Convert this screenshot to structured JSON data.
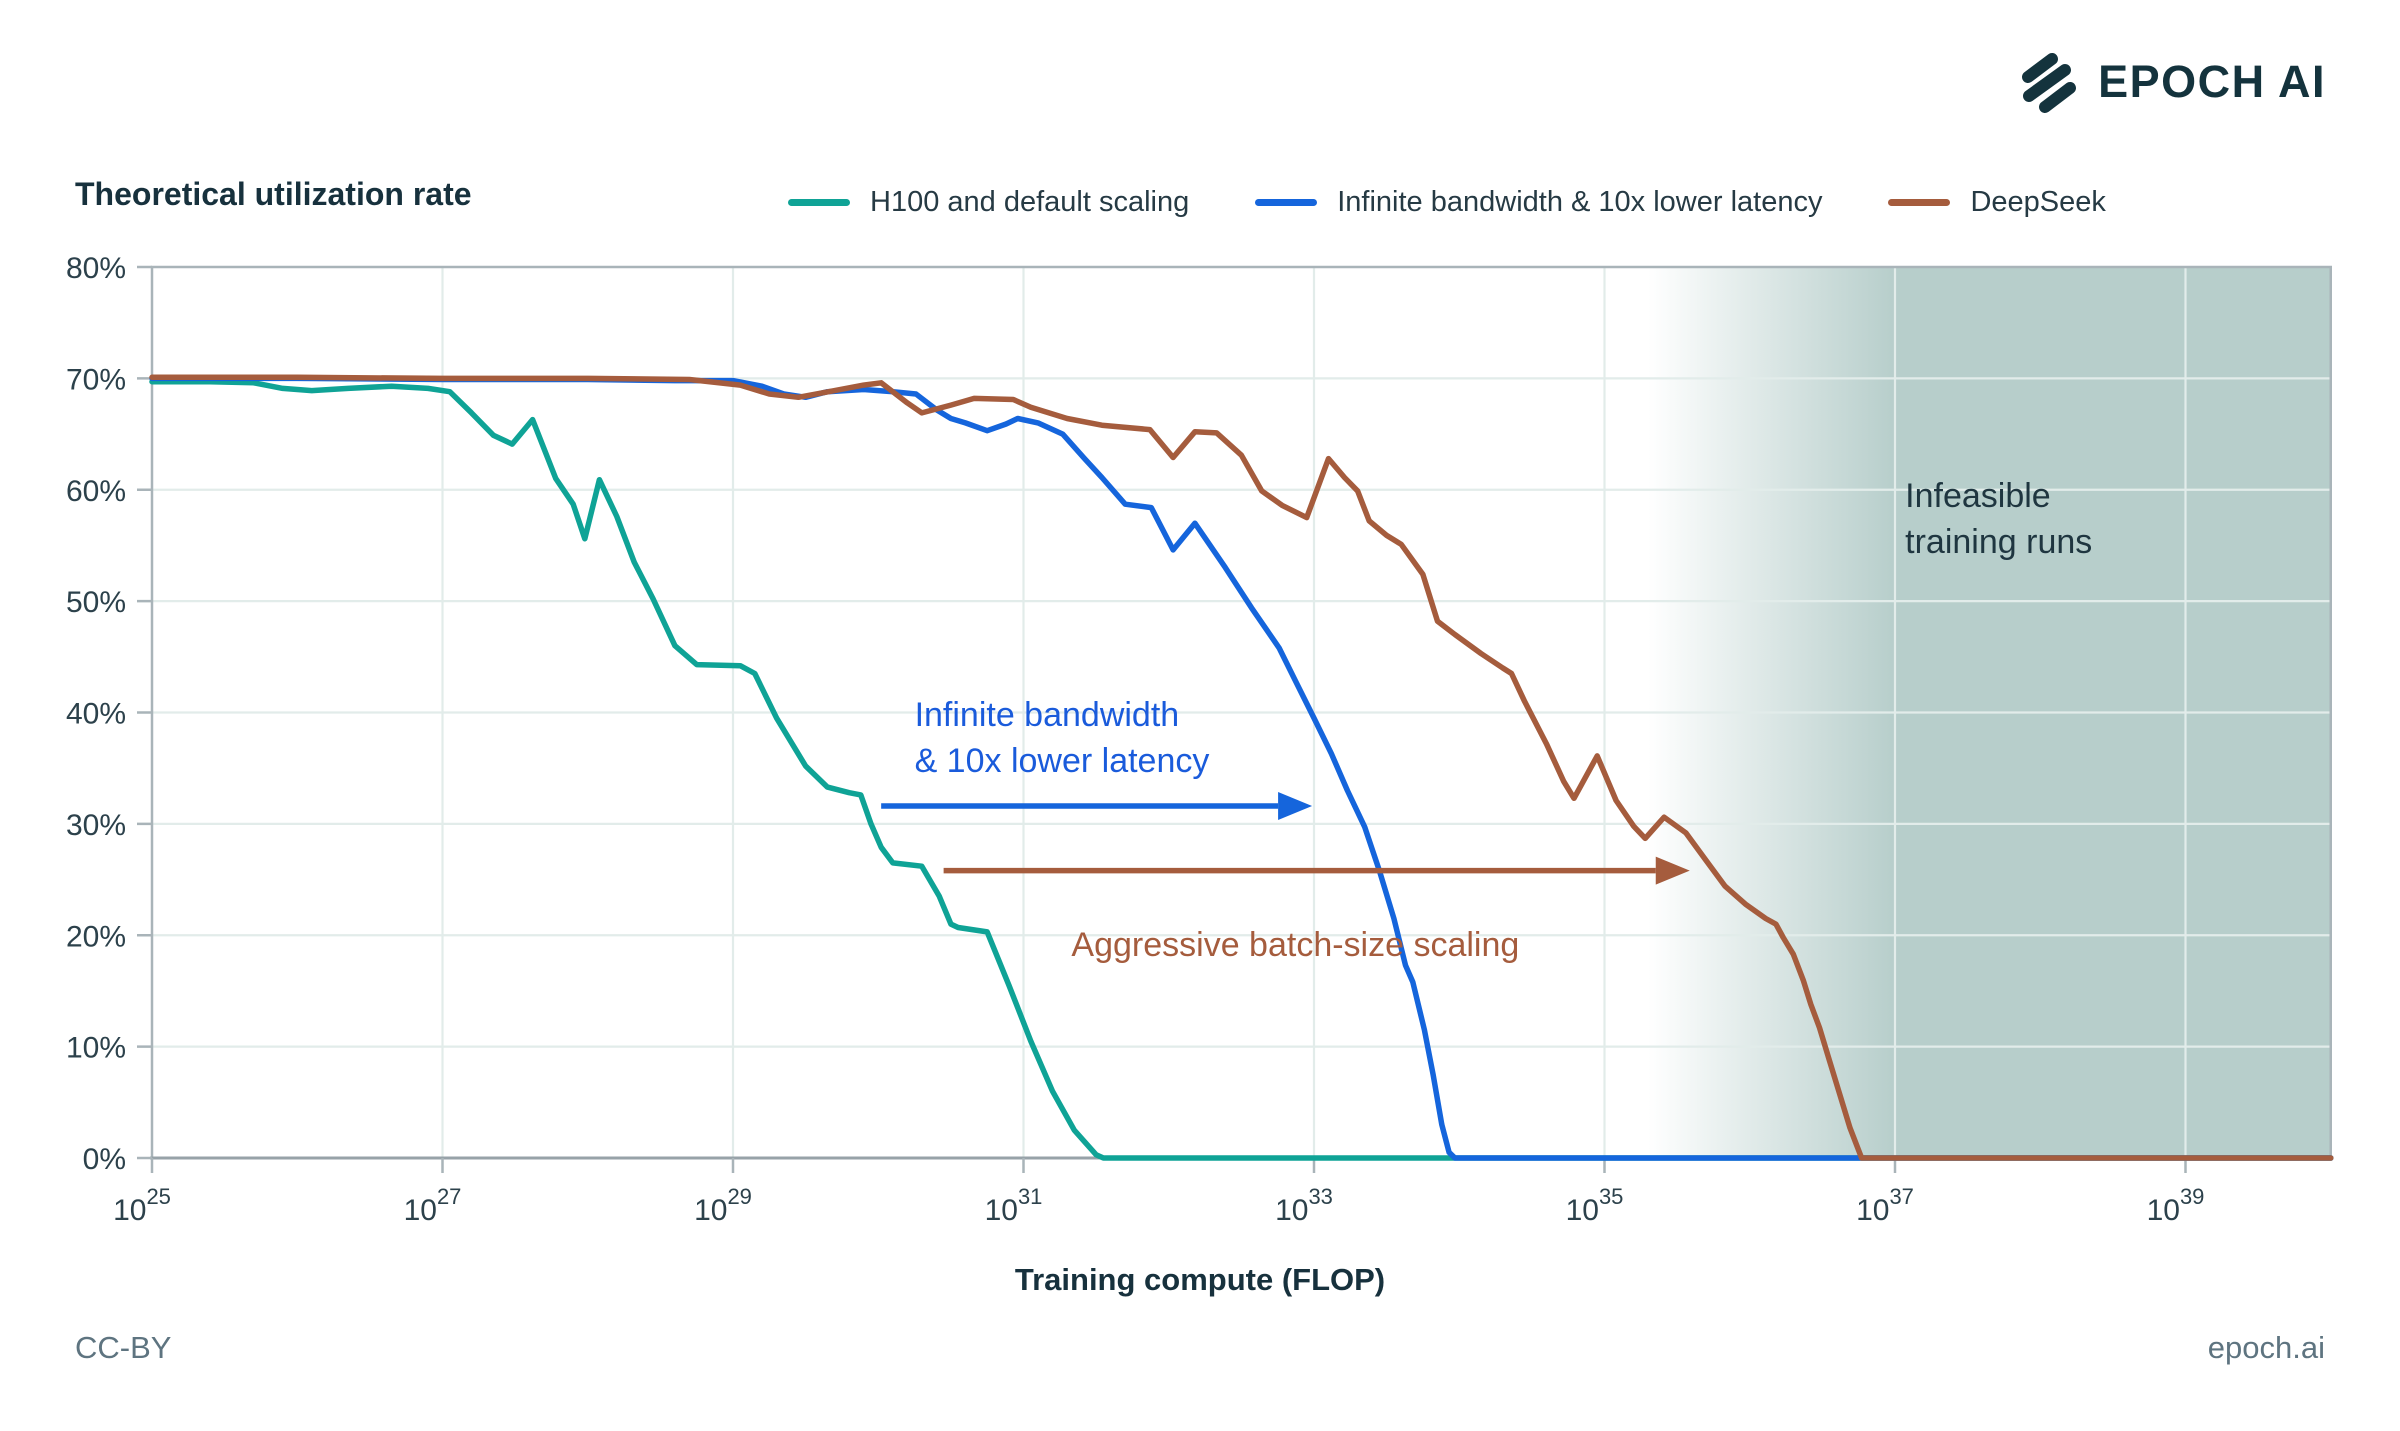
{
  "header": {
    "logo_text": "EPOCH AI",
    "title": "Theoretical utilization rate"
  },
  "legend": {
    "items": [
      {
        "label": "H100 and default scaling",
        "color": "#0FA396"
      },
      {
        "label": "Infinite bandwidth & 10x lower latency",
        "color": "#1565DC"
      },
      {
        "label": "DeepSeek",
        "color": "#A55C3D"
      }
    ]
  },
  "footer": {
    "license": "CC-BY",
    "site": "epoch.ai"
  },
  "axis": {
    "x_title": "Training compute (FLOP)"
  },
  "colors": {
    "grid": "#E2ECEA",
    "frame": "#A9B4B9",
    "axis_line": "#97A2A8",
    "tick": "#A9B4B9",
    "label_dark": "#2C414B",
    "infeasible_fill": "#B7CECB",
    "logo": "#14333D"
  },
  "chart_data": {
    "type": "line",
    "title": "Theoretical utilization rate",
    "xlabel": "Training compute (FLOP)",
    "ylabel": "Theoretical utilization rate (%)",
    "x_scale": "log10",
    "xlim_exponents": [
      25,
      40
    ],
    "x_tick_exponents": [
      25,
      27,
      29,
      31,
      33,
      35,
      37,
      39
    ],
    "x_tick_base": "10",
    "ylim": [
      0,
      80
    ],
    "y_ticks_percent": [
      0,
      10,
      20,
      30,
      40,
      50,
      60,
      70,
      80
    ],
    "grid": true,
    "legend_position": "top",
    "infeasible_region": {
      "label_lines": [
        "Infeasible",
        "training runs"
      ],
      "fade_from_exp": 35.3,
      "solid_from_exp": 37.0,
      "color": "#B7CECB"
    },
    "series": [
      {
        "id": "h100-default-scaling",
        "name": "H100 and default scaling",
        "color": "#0FA396",
        "points_log10x_pct": [
          [
            25.0,
            69.7
          ],
          [
            25.4,
            69.7
          ],
          [
            25.7,
            69.6
          ],
          [
            25.9,
            69.1
          ],
          [
            26.1,
            68.9
          ],
          [
            26.35,
            69.1
          ],
          [
            26.65,
            69.3
          ],
          [
            26.9,
            69.1
          ],
          [
            27.05,
            68.8
          ],
          [
            27.2,
            66.9
          ],
          [
            27.35,
            64.9
          ],
          [
            27.48,
            64.1
          ],
          [
            27.62,
            66.3
          ],
          [
            27.78,
            61.0
          ],
          [
            27.9,
            58.7
          ],
          [
            27.98,
            55.6
          ],
          [
            28.08,
            60.9
          ],
          [
            28.2,
            57.6
          ],
          [
            28.32,
            53.5
          ],
          [
            28.45,
            50.2
          ],
          [
            28.6,
            46.0
          ],
          [
            28.75,
            44.3
          ],
          [
            29.05,
            44.2
          ],
          [
            29.15,
            43.5
          ],
          [
            29.3,
            39.5
          ],
          [
            29.5,
            35.2
          ],
          [
            29.65,
            33.3
          ],
          [
            29.8,
            32.8
          ],
          [
            29.88,
            32.6
          ],
          [
            29.95,
            30.0
          ],
          [
            30.02,
            27.9
          ],
          [
            30.1,
            26.5
          ],
          [
            30.3,
            26.2
          ],
          [
            30.42,
            23.5
          ],
          [
            30.5,
            21.0
          ],
          [
            30.55,
            20.7
          ],
          [
            30.75,
            20.3
          ],
          [
            30.9,
            15.5
          ],
          [
            31.05,
            10.5
          ],
          [
            31.2,
            6.0
          ],
          [
            31.35,
            2.5
          ],
          [
            31.5,
            0.3
          ],
          [
            31.55,
            0.0
          ],
          [
            40.0,
            0.0
          ]
        ]
      },
      {
        "id": "infinite-bandwidth-10x-lower-latency",
        "name": "Infinite bandwidth & 10x lower latency",
        "color": "#1565DC",
        "points_log10x_pct": [
          [
            25.0,
            70.0
          ],
          [
            26.0,
            70.0
          ],
          [
            27.0,
            69.9
          ],
          [
            28.0,
            69.9
          ],
          [
            28.6,
            69.8
          ],
          [
            29.0,
            69.8
          ],
          [
            29.2,
            69.3
          ],
          [
            29.35,
            68.6
          ],
          [
            29.5,
            68.3
          ],
          [
            29.65,
            68.8
          ],
          [
            29.9,
            69.0
          ],
          [
            30.1,
            68.8
          ],
          [
            30.26,
            68.6
          ],
          [
            30.4,
            67.2
          ],
          [
            30.5,
            66.4
          ],
          [
            30.6,
            66.0
          ],
          [
            30.75,
            65.3
          ],
          [
            30.88,
            65.9
          ],
          [
            30.96,
            66.4
          ],
          [
            31.1,
            66.0
          ],
          [
            31.27,
            65.0
          ],
          [
            31.42,
            62.8
          ],
          [
            31.54,
            61.1
          ],
          [
            31.7,
            58.7
          ],
          [
            31.88,
            58.4
          ],
          [
            32.03,
            54.6
          ],
          [
            32.18,
            57.0
          ],
          [
            32.39,
            53.0
          ],
          [
            32.57,
            49.4
          ],
          [
            32.76,
            45.8
          ],
          [
            32.87,
            42.9
          ],
          [
            33.0,
            39.5
          ],
          [
            33.12,
            36.3
          ],
          [
            33.23,
            33.0
          ],
          [
            33.35,
            29.7
          ],
          [
            33.45,
            25.8
          ],
          [
            33.55,
            21.5
          ],
          [
            33.63,
            17.3
          ],
          [
            33.68,
            15.8
          ],
          [
            33.76,
            11.5
          ],
          [
            33.82,
            7.5
          ],
          [
            33.88,
            3.0
          ],
          [
            33.93,
            0.5
          ],
          [
            33.97,
            0.0
          ],
          [
            40.0,
            0.0
          ]
        ]
      },
      {
        "id": "deepseek",
        "name": "DeepSeek",
        "color": "#A55C3D",
        "points_log10x_pct": [
          [
            25.0,
            70.1
          ],
          [
            26.0,
            70.1
          ],
          [
            27.0,
            70.0
          ],
          [
            28.0,
            70.0
          ],
          [
            28.7,
            69.9
          ],
          [
            29.05,
            69.4
          ],
          [
            29.25,
            68.6
          ],
          [
            29.45,
            68.3
          ],
          [
            29.7,
            68.9
          ],
          [
            29.9,
            69.4
          ],
          [
            30.02,
            69.6
          ],
          [
            30.2,
            67.8
          ],
          [
            30.3,
            66.9
          ],
          [
            30.5,
            67.6
          ],
          [
            30.66,
            68.2
          ],
          [
            30.93,
            68.1
          ],
          [
            31.05,
            67.4
          ],
          [
            31.3,
            66.4
          ],
          [
            31.54,
            65.8
          ],
          [
            31.87,
            65.4
          ],
          [
            32.03,
            62.9
          ],
          [
            32.18,
            65.2
          ],
          [
            32.33,
            65.1
          ],
          [
            32.5,
            63.1
          ],
          [
            32.64,
            59.9
          ],
          [
            32.78,
            58.6
          ],
          [
            32.95,
            57.5
          ],
          [
            33.1,
            62.8
          ],
          [
            33.21,
            61.1
          ],
          [
            33.3,
            59.9
          ],
          [
            33.38,
            57.2
          ],
          [
            33.5,
            55.9
          ],
          [
            33.6,
            55.1
          ],
          [
            33.75,
            52.4
          ],
          [
            33.85,
            48.2
          ],
          [
            33.97,
            47.0
          ],
          [
            34.15,
            45.3
          ],
          [
            34.3,
            44.0
          ],
          [
            34.36,
            43.5
          ],
          [
            34.45,
            41.0
          ],
          [
            34.6,
            37.2
          ],
          [
            34.72,
            33.8
          ],
          [
            34.79,
            32.3
          ],
          [
            34.95,
            36.1
          ],
          [
            35.08,
            32.1
          ],
          [
            35.2,
            29.8
          ],
          [
            35.28,
            28.7
          ],
          [
            35.41,
            30.6
          ],
          [
            35.56,
            29.2
          ],
          [
            35.7,
            26.7
          ],
          [
            35.83,
            24.4
          ],
          [
            35.97,
            22.8
          ],
          [
            36.11,
            21.5
          ],
          [
            36.18,
            21.0
          ],
          [
            36.23,
            19.8
          ],
          [
            36.3,
            18.3
          ],
          [
            36.37,
            15.9
          ],
          [
            36.42,
            13.8
          ],
          [
            36.48,
            11.7
          ],
          [
            36.55,
            8.7
          ],
          [
            36.62,
            5.7
          ],
          [
            36.69,
            2.7
          ],
          [
            36.77,
            0.0
          ],
          [
            40.0,
            0.0
          ]
        ]
      }
    ],
    "annotations": {
      "arrows": [
        {
          "name": "infinite-bandwidth-arrow",
          "color": "#1565DC",
          "y_pct": 31.6,
          "from_exp": 30.02,
          "to_exp": 32.98
        },
        {
          "name": "batch-size-arrow",
          "color": "#A55C3D",
          "y_pct": 25.8,
          "from_exp": 30.45,
          "to_exp": 35.58
        }
      ],
      "labels": [
        {
          "name": "infinite-bandwidth-label",
          "color": "#1A5BDB",
          "x_exp": 30.25,
          "y_pct": 41.8,
          "lines": [
            "Infinite bandwidth",
            "& 10x lower latency"
          ]
        },
        {
          "name": "batch-size-label",
          "color": "#A55C3D",
          "x_exp": 31.33,
          "y_pct": 21.2,
          "lines": [
            "Aggressive batch-size scaling"
          ]
        },
        {
          "name": "infeasible-label",
          "color": "#1F3640",
          "x_exp": 37.07,
          "y_pct": 61.5,
          "lines": [
            "Infeasible",
            "training runs"
          ]
        }
      ]
    }
  }
}
